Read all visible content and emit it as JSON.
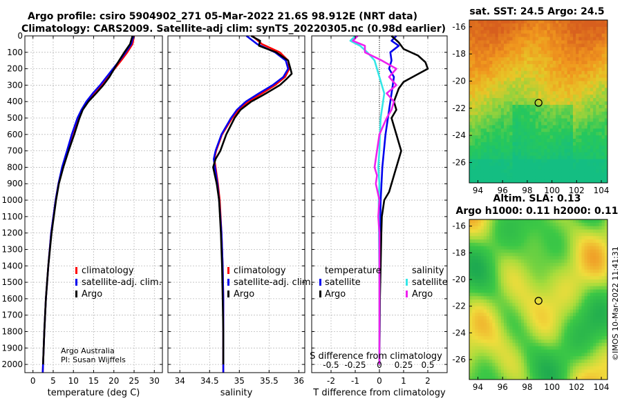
{
  "title": {
    "line1": "Argo profile: csiro 5904902_271 05-Mar-2022 21.6S 98.912E (NRT data)",
    "line2": "Climatology: CARS2009. Satellite-adj clim: synTS_20220305.nc (0.98d earlier)"
  },
  "colors": {
    "climatology": "#ff0000",
    "satellite_adj": "#0000ee",
    "argo": "#000000",
    "sat_cyan": "#33e6e6",
    "magenta": "#ee22ee"
  },
  "chart_data": [
    {
      "type": "line",
      "id": "temperature",
      "xlabel": "temperature (deg C)",
      "ylabel": "",
      "xlim": [
        -2,
        32
      ],
      "ylim": [
        2050,
        0
      ],
      "xticks": [
        0,
        5,
        10,
        15,
        20,
        25,
        30
      ],
      "yticks": [
        0,
        100,
        200,
        300,
        400,
        500,
        600,
        700,
        800,
        900,
        1000,
        1100,
        1200,
        1300,
        1400,
        1500,
        1600,
        1700,
        1800,
        1900,
        2000
      ],
      "grid": true,
      "legend": {
        "placement": "lower-center",
        "entries": [
          "climatology",
          "satellite-adj. clim.",
          "Argo"
        ]
      },
      "annotation": [
        "Argo Australia",
        "PI: Susan Wijffels"
      ],
      "series": [
        {
          "name": "climatology",
          "color": "climatology",
          "depth": [
            0,
            50,
            100,
            150,
            200,
            250,
            300,
            350,
            400,
            450,
            500,
            600,
            700,
            800,
            900,
            1000,
            1200,
            1400,
            1600,
            1800,
            2000,
            2050
          ],
          "values": [
            25.0,
            24.6,
            23.3,
            21.8,
            20.2,
            18.6,
            16.9,
            15.0,
            13.4,
            12.2,
            11.2,
            9.7,
            8.5,
            7.3,
            6.3,
            5.6,
            4.5,
            3.8,
            3.2,
            2.8,
            2.5,
            2.4
          ]
        },
        {
          "name": "satellite-adj. clim.",
          "color": "satellite_adj",
          "depth": [
            0,
            50,
            100,
            150,
            200,
            250,
            300,
            350,
            400,
            450,
            500,
            600,
            700,
            800,
            900,
            1000,
            1200,
            1400,
            1600,
            1800,
            2000,
            2050
          ],
          "values": [
            24.8,
            24.3,
            22.9,
            21.4,
            19.8,
            18.2,
            16.6,
            14.8,
            13.2,
            12.0,
            11.0,
            9.6,
            8.4,
            7.2,
            6.3,
            5.6,
            4.5,
            3.8,
            3.2,
            2.8,
            2.5,
            2.4
          ]
        },
        {
          "name": "Argo",
          "color": "argo",
          "depth": [
            0,
            50,
            100,
            150,
            200,
            250,
            300,
            350,
            400,
            450,
            500,
            600,
            700,
            800,
            900,
            1000,
            1200,
            1400,
            1600,
            1800,
            2000
          ],
          "values": [
            24.6,
            24.0,
            22.6,
            21.3,
            20.1,
            18.9,
            17.4,
            15.6,
            13.7,
            12.3,
            11.5,
            10.2,
            8.8,
            7.5,
            6.4,
            5.7,
            4.6,
            3.8,
            3.2,
            2.8,
            2.5
          ]
        }
      ]
    },
    {
      "type": "line",
      "id": "salinity",
      "xlabel": "salinity",
      "ylabel": "",
      "xlim": [
        33.8,
        36.1
      ],
      "ylim": [
        2050,
        0
      ],
      "xticks": [
        34,
        34.5,
        35,
        35.5,
        36
      ],
      "grid": true,
      "legend": {
        "placement": "lower-center",
        "entries": [
          "climatology",
          "satellite-adj. clim.",
          "Argo"
        ]
      },
      "series": [
        {
          "name": "climatology",
          "color": "climatology",
          "depth": [
            0,
            50,
            100,
            150,
            200,
            250,
            300,
            350,
            400,
            450,
            500,
            600,
            700,
            750,
            800,
            900,
            1000,
            1200,
            1400,
            1600,
            1800,
            2000,
            2050
          ],
          "values": [
            35.22,
            35.38,
            35.68,
            35.82,
            35.84,
            35.77,
            35.6,
            35.38,
            35.15,
            34.99,
            34.88,
            34.71,
            34.61,
            34.58,
            34.6,
            34.64,
            34.67,
            34.7,
            34.72,
            34.73,
            34.73,
            34.73,
            34.73
          ]
        },
        {
          "name": "satellite-adj. clim.",
          "color": "satellite_adj",
          "depth": [
            0,
            50,
            100,
            150,
            200,
            250,
            300,
            350,
            400,
            450,
            500,
            600,
            700,
            750,
            800,
            900,
            1000,
            1200,
            1400,
            1600,
            1800,
            2000,
            2050
          ],
          "values": [
            35.12,
            35.3,
            35.6,
            35.78,
            35.82,
            35.74,
            35.56,
            35.33,
            35.11,
            34.96,
            34.86,
            34.7,
            34.6,
            34.57,
            34.59,
            34.63,
            34.66,
            34.7,
            34.72,
            34.73,
            34.73,
            34.73,
            34.73
          ]
        },
        {
          "name": "Argo",
          "color": "argo",
          "depth": [
            0,
            30,
            60,
            100,
            150,
            200,
            230,
            260,
            300,
            350,
            400,
            450,
            500,
            600,
            700,
            750,
            800,
            850,
            900,
            950,
            1000,
            1200,
            1400,
            1600,
            1800,
            2000
          ],
          "values": [
            35.2,
            35.35,
            35.33,
            35.62,
            35.82,
            35.86,
            35.88,
            35.8,
            35.68,
            35.45,
            35.2,
            35.02,
            34.92,
            34.78,
            34.68,
            34.6,
            34.56,
            34.59,
            34.62,
            34.64,
            34.66,
            34.69,
            34.71,
            34.72,
            34.73,
            34.73
          ]
        }
      ]
    },
    {
      "type": "line",
      "id": "difference",
      "xlabel": "T difference from climatology",
      "x2label": "S difference from climatology",
      "xlim": [
        -2.8,
        2.8
      ],
      "ylim": [
        2050,
        0
      ],
      "xticks": [
        -2,
        -1,
        0,
        1,
        2
      ],
      "xtick_labels": [
        "-2",
        "-1",
        "0",
        "1",
        "2"
      ],
      "x2ticks": [
        -2,
        -1,
        0,
        1,
        2
      ],
      "x2tick_labels": [
        "-0.5",
        "-0.25",
        "0",
        "0.25",
        "0.5"
      ],
      "grid": true,
      "legend": {
        "placement": "lower-center",
        "groups": [
          {
            "heading": "temperature",
            "entries": [
              "satellite",
              "Argo"
            ]
          },
          {
            "heading": "salinity",
            "entries": [
              "satellite",
              "Argo"
            ]
          }
        ]
      },
      "series": [
        {
          "name": "temperature satellite",
          "color": "satellite_adj",
          "depth": [
            0,
            30,
            60,
            100,
            150,
            200,
            250,
            300,
            400,
            500,
            600,
            800,
            1000,
            1200,
            1500,
            2000
          ],
          "values": [
            0.7,
            0.5,
            0.8,
            0.45,
            0.5,
            0.4,
            0.6,
            0.55,
            0.45,
            0.35,
            0.25,
            0.12,
            0.05,
            0.03,
            0.02,
            0.0
          ]
        },
        {
          "name": "temperature Argo",
          "color": "argo",
          "depth": [
            0,
            40,
            80,
            120,
            160,
            200,
            240,
            280,
            320,
            360,
            400,
            450,
            500,
            550,
            600,
            650,
            700,
            750,
            800,
            850,
            900,
            950,
            1000,
            1100,
            1200,
            1400,
            1600,
            1800,
            2000
          ],
          "values": [
            0.5,
            0.8,
            1.0,
            1.6,
            1.9,
            2.0,
            1.5,
            1.0,
            0.8,
            0.7,
            0.6,
            0.7,
            0.5,
            0.6,
            0.7,
            0.8,
            0.9,
            0.8,
            0.7,
            0.6,
            0.5,
            0.4,
            0.2,
            0.1,
            0.08,
            0.05,
            0.02,
            0.01,
            0.0
          ]
        },
        {
          "name": "salinity satellite",
          "color": "sat_cyan",
          "depth": [
            0,
            30,
            60,
            100,
            150,
            200,
            250,
            300,
            350,
            400,
            450,
            500,
            600,
            700,
            800,
            900,
            1000,
            1200,
            1500,
            2000
          ],
          "values": [
            -1.0,
            -1.2,
            -0.8,
            -0.5,
            -0.2,
            -0.1,
            0.0,
            0.1,
            0.2,
            0.15,
            0.1,
            0.05,
            0.02,
            0.0,
            -0.05,
            0.0,
            -0.03,
            -0.02,
            0.0,
            0.0
          ]
        },
        {
          "name": "salinity Argo",
          "color": "magenta",
          "depth": [
            0,
            30,
            60,
            100,
            150,
            200,
            250,
            300,
            350,
            400,
            450,
            500,
            600,
            700,
            800,
            850,
            900,
            1000,
            1100,
            1200,
            1400,
            1600,
            1800,
            2000
          ],
          "values": [
            -0.9,
            -1.1,
            -0.6,
            -0.6,
            0.1,
            0.7,
            0.4,
            0.7,
            0.3,
            0.6,
            0.5,
            0.3,
            0.0,
            -0.1,
            -0.2,
            -0.1,
            -0.15,
            0.0,
            -0.05,
            0.0,
            0.0,
            0.0,
            0.0,
            0.0
          ]
        }
      ]
    },
    {
      "type": "heatmap",
      "id": "sst_map",
      "title": "sat. SST: 24.5 Argo: 24.5",
      "xlim": [
        93.3,
        104.5
      ],
      "ylim": [
        -27.5,
        -15.5
      ],
      "xticks": [
        94,
        96,
        98,
        100,
        102,
        104
      ],
      "yticks": [
        -16,
        -18,
        -20,
        -22,
        -24,
        -26
      ],
      "marker": {
        "lon": 98.912,
        "lat": -21.6
      }
    },
    {
      "type": "heatmap",
      "id": "sla_map",
      "title": "Altim. SLA: 0.13",
      "subtitle": "Argo h1000: 0.11 h2000: 0.11",
      "xlim": [
        93.3,
        104.5
      ],
      "ylim": [
        -27.5,
        -15.5
      ],
      "xticks": [
        94,
        96,
        98,
        100,
        102,
        104
      ],
      "yticks": [
        -16,
        -18,
        -20,
        -22,
        -24,
        -26
      ],
      "marker": {
        "lon": 98.912,
        "lat": -21.6
      }
    }
  ],
  "legends": {
    "panel1": [
      "climatology",
      "satellite-adj. clim.",
      "Argo"
    ],
    "temperature_heading": "temperature",
    "salinity_heading": "salinity",
    "satellite": "satellite",
    "argo": "Argo"
  },
  "credit": {
    "org": "Argo Australia",
    "pi": "PI: Susan Wijffels"
  },
  "footer": "©IMOS 10-Mar-2022 11:41:31"
}
